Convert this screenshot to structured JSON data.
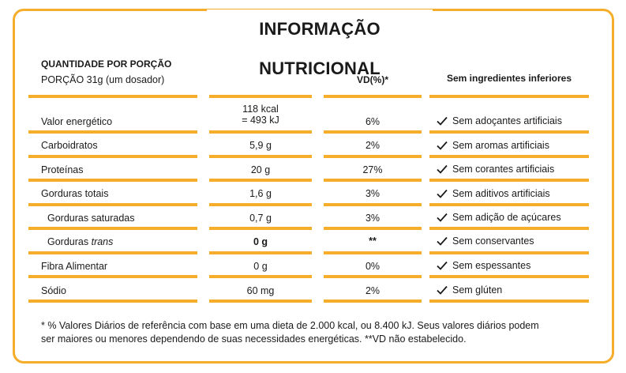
{
  "title": "INFORMAÇÃO NUTRICIONAL",
  "header": {
    "quantity_label": "QUANTIDADE POR PORÇÃO",
    "portion": "PORÇÃO 31g (um dosador)",
    "vd_label": "VD(%)*",
    "free_from_label": "Sem ingredientes inferiores"
  },
  "nutrients": [
    {
      "name": "Valor energético",
      "value_line1": "118 kcal",
      "value_line2": "= 493 kJ",
      "vd": "6%"
    },
    {
      "name": "Carboidratos",
      "value": "5,9 g",
      "vd": "2%"
    },
    {
      "name": "Proteínas",
      "value": "20 g",
      "vd": "27%"
    },
    {
      "name": "Gorduras totais",
      "value": "1,6 g",
      "vd": "3%"
    },
    {
      "name": "Gorduras saturadas",
      "value": "0,7 g",
      "vd": "3%"
    },
    {
      "name_prefix": "Gorduras ",
      "name_italic": "trans",
      "value": "0 g",
      "vd": "**"
    },
    {
      "name": "Fibra Alimentar",
      "value": "0 g",
      "vd": "0%"
    },
    {
      "name": "Sódio",
      "value": "60 mg",
      "vd": "2%"
    }
  ],
  "free_from": [
    "Sem adoçantes artificiais",
    "Sem aromas artificiais",
    "Sem corantes artificiais",
    "Sem aditivos artificiais",
    "Sem adição de açúcares",
    "Sem conservantes",
    "Sem espessantes",
    "Sem glúten"
  ],
  "footnote": {
    "line1": "* % Valores Diários de referência com base em uma dieta de 2.000 kcal, ou 8.400 kJ. Seus valores diários podem",
    "line2": "ser maiores ou menores dependendo de suas necessidades energéticas. **VD não estabelecido."
  },
  "colors": {
    "accent": "#f5ad2b",
    "text": "#1a1a1a"
  },
  "icon": "check-icon"
}
